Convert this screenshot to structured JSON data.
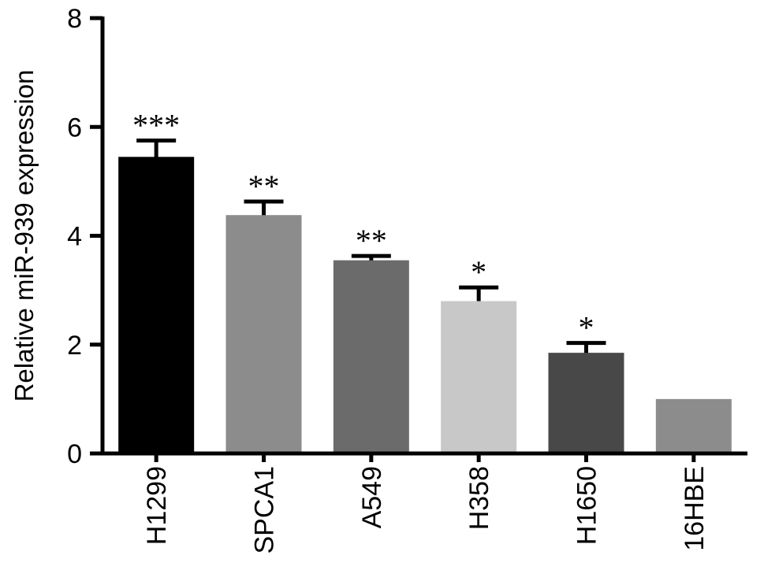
{
  "chart_data": {
    "type": "bar",
    "title": "",
    "xlabel": "",
    "ylabel": "Relative miR-939 expression",
    "ylim": [
      0,
      8
    ],
    "yticks": [
      0,
      2,
      4,
      6,
      8
    ],
    "grid": false,
    "categories": [
      "H1299",
      "SPCA1",
      "A549",
      "H358",
      "H1650",
      "16HBE"
    ],
    "values": [
      5.45,
      4.38,
      3.55,
      2.8,
      1.85,
      1.0
    ],
    "errors": [
      0.3,
      0.25,
      0.08,
      0.25,
      0.18,
      0
    ],
    "significance": [
      "***",
      "**",
      "**",
      "*",
      "*",
      ""
    ],
    "colors": [
      "#000000",
      "#8c8c8c",
      "#6b6b6b",
      "#c8c8c8",
      "#484848",
      "#8c8c8c"
    ],
    "error_bar_color": "#000000"
  }
}
